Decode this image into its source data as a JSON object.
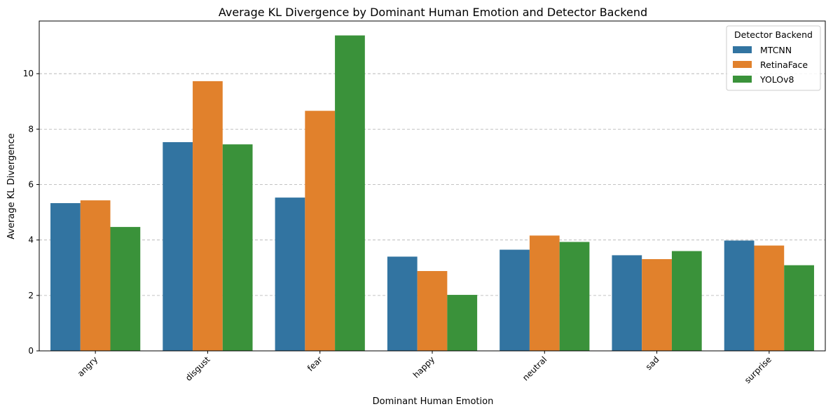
{
  "chart_data": {
    "type": "bar",
    "title": "Average KL Divergence by Dominant Human Emotion and Detector Backend",
    "xlabel": "Dominant Human Emotion",
    "ylabel": "Average KL Divergence",
    "categories": [
      "angry",
      "disgust",
      "fear",
      "happy",
      "neutral",
      "sad",
      "surprise"
    ],
    "series": [
      {
        "name": "MTCNN",
        "color": "#3274a1",
        "values": [
          5.33,
          7.53,
          5.53,
          3.4,
          3.65,
          3.45,
          3.98
        ]
      },
      {
        "name": "RetinaFace",
        "color": "#e1812c",
        "values": [
          5.43,
          9.73,
          8.66,
          2.88,
          4.16,
          3.31,
          3.8
        ]
      },
      {
        "name": "YOLOv8",
        "color": "#3a923a",
        "values": [
          4.47,
          7.45,
          11.38,
          2.02,
          3.93,
          3.6,
          3.09
        ]
      }
    ],
    "ylim": [
      0,
      11.9
    ],
    "yticks": [
      0,
      2,
      4,
      6,
      8,
      10
    ],
    "grid": "y-dashed",
    "legend": {
      "title": "Detector Backend",
      "placement": "top-right"
    }
  }
}
